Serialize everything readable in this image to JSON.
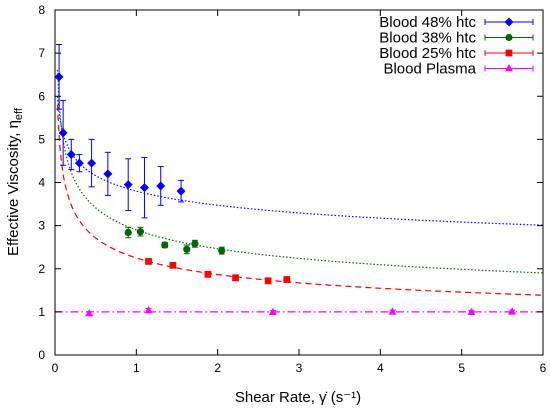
{
  "chart_data": {
    "type": "scatter",
    "xlabel": "Shear Rate, γ̇ (s⁻¹)",
    "ylabel": "Effective Viscosity, η_eff",
    "xlim": [
      0,
      6
    ],
    "ylim": [
      0,
      8
    ],
    "xticks": [
      "0",
      "1",
      "2",
      "3",
      "4",
      "5",
      "6"
    ],
    "yticks": [
      "0",
      "1",
      "2",
      "3",
      "4",
      "5",
      "6",
      "7",
      "8"
    ],
    "grid": false,
    "legend_position": "top-right",
    "series": [
      {
        "name": "Blood 48% htc",
        "color": "#0000ff",
        "marker": "diamond",
        "points": [
          {
            "x": 0.05,
            "y": 6.45,
            "err": 0.75
          },
          {
            "x": 0.1,
            "y": 5.15,
            "err": 0.75
          },
          {
            "x": 0.2,
            "y": 4.65,
            "err": 0.35
          },
          {
            "x": 0.3,
            "y": 4.45,
            "err": 0.2
          },
          {
            "x": 0.45,
            "y": 4.45,
            "err": 0.55
          },
          {
            "x": 0.65,
            "y": 4.2,
            "err": 0.5
          },
          {
            "x": 0.9,
            "y": 3.95,
            "err": 0.6
          },
          {
            "x": 1.1,
            "y": 3.88,
            "err": 0.7
          },
          {
            "x": 1.3,
            "y": 3.92,
            "err": 0.45
          },
          {
            "x": 1.55,
            "y": 3.8,
            "err": 0.25
          }
        ],
        "fit": {
          "a": 3.8,
          "n": -0.13,
          "style": "dotted"
        }
      },
      {
        "name": "Blood 38% htc",
        "color": "#006400",
        "marker": "circle",
        "points": [
          {
            "x": 0.9,
            "y": 2.84,
            "err": 0.12
          },
          {
            "x": 1.05,
            "y": 2.86,
            "err": 0.1
          },
          {
            "x": 1.35,
            "y": 2.55,
            "err": 0.06
          },
          {
            "x": 1.62,
            "y": 2.45,
            "err": 0.1
          },
          {
            "x": 1.72,
            "y": 2.58,
            "err": 0.08
          },
          {
            "x": 2.05,
            "y": 2.42,
            "err": 0.08
          }
        ],
        "fit": {
          "a": 2.9,
          "n": -0.235,
          "style": "dotted"
        }
      },
      {
        "name": "Blood 25% htc",
        "color": "#ff0000",
        "marker": "square",
        "points": [
          {
            "x": 1.15,
            "y": 2.17,
            "err": 0.06
          },
          {
            "x": 1.45,
            "y": 2.08,
            "err": 0.06
          },
          {
            "x": 1.88,
            "y": 1.87,
            "err": 0.06
          },
          {
            "x": 2.22,
            "y": 1.79,
            "err": 0.06
          },
          {
            "x": 2.62,
            "y": 1.72,
            "err": 0.06
          },
          {
            "x": 2.85,
            "y": 1.75,
            "err": 0.06
          }
        ],
        "fit": {
          "a": 2.25,
          "n": -0.27,
          "style": "dashed"
        }
      },
      {
        "name": "Blood Plasma",
        "color": "#ff00ff",
        "marker": "triangle",
        "points": [
          {
            "x": 0.42,
            "y": 0.96,
            "err": 0.04
          },
          {
            "x": 1.15,
            "y": 1.03,
            "err": 0.05
          },
          {
            "x": 2.68,
            "y": 0.99,
            "err": 0.04
          },
          {
            "x": 4.15,
            "y": 1.0,
            "err": 0.04
          },
          {
            "x": 5.12,
            "y": 0.99,
            "err": 0.04
          },
          {
            "x": 5.62,
            "y": 1.0,
            "err": 0.04
          }
        ],
        "fit": {
          "a": 1.0,
          "n": 0,
          "style": "dashdot"
        }
      }
    ]
  }
}
